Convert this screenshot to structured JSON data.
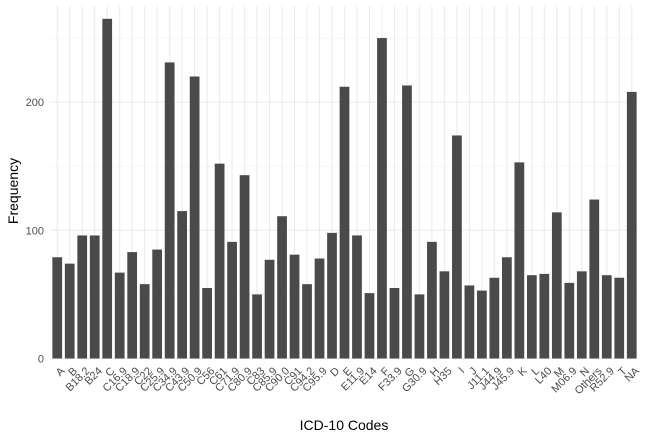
{
  "chart_data": {
    "type": "bar",
    "title": "",
    "xlabel": "ICD-10 Codes",
    "ylabel": "Frequency",
    "ylim": [
      0,
      275
    ],
    "yticks": [
      0,
      100,
      200
    ],
    "grid": true,
    "categories": [
      "A",
      "B",
      "B18.2",
      "B24",
      "C",
      "C16.9",
      "C18.9",
      "C22",
      "C25.9",
      "C34.9",
      "C43.9",
      "C50.9",
      "C56",
      "C61",
      "C71.9",
      "C80.9",
      "C83",
      "C85.9",
      "C90.0",
      "C91",
      "C94.2",
      "C95.9",
      "D",
      "E",
      "E11.9",
      "E14",
      "F",
      "F33.9",
      "G",
      "G30.9",
      "H",
      "H35",
      "I",
      "J",
      "J11.1",
      "J44.9",
      "J45.9",
      "K",
      "L",
      "L40",
      "M",
      "M06.9",
      "N",
      "Others",
      "R52.9",
      "T",
      "NA"
    ],
    "values": [
      79,
      74,
      96,
      96,
      265,
      67,
      83,
      58,
      85,
      231,
      115,
      220,
      55,
      152,
      91,
      143,
      50,
      77,
      111,
      81,
      58,
      78,
      98,
      212,
      96,
      51,
      250,
      55,
      213,
      50,
      91,
      68,
      174,
      57,
      53,
      63,
      79,
      153,
      65,
      66,
      114,
      59,
      68,
      124,
      65,
      63,
      208
    ],
    "bar_color": "#4a4a4a",
    "grid_color": "#ebebeb",
    "background": "#ffffff"
  }
}
